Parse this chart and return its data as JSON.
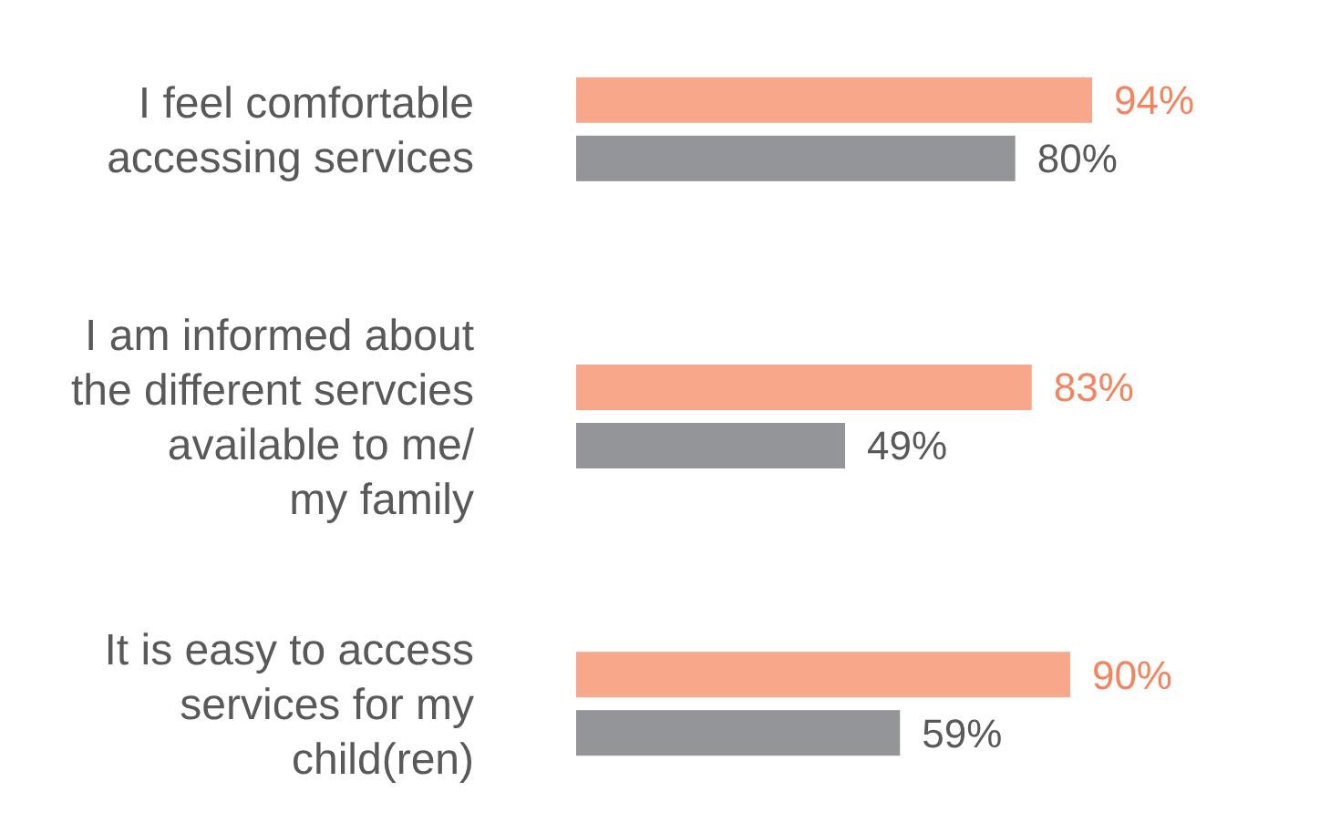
{
  "chart_data": {
    "type": "bar",
    "orientation": "horizontal",
    "categories": [
      "I feel comfortable\naccessing services",
      "I am informed about\nthe different servcies\navailable to me/\nmy family",
      "It is easy to access\nservices for my\nchild(ren)"
    ],
    "series": [
      {
        "color": "#f8a78a",
        "values": [
          94,
          83,
          90
        ],
        "value_labels": [
          "94%",
          "83%",
          "90%"
        ]
      },
      {
        "color": "#939598",
        "values": [
          80,
          49,
          59
        ],
        "value_labels": [
          "80%",
          "49%",
          "59%"
        ]
      }
    ],
    "tick_labels": "y"
  }
}
